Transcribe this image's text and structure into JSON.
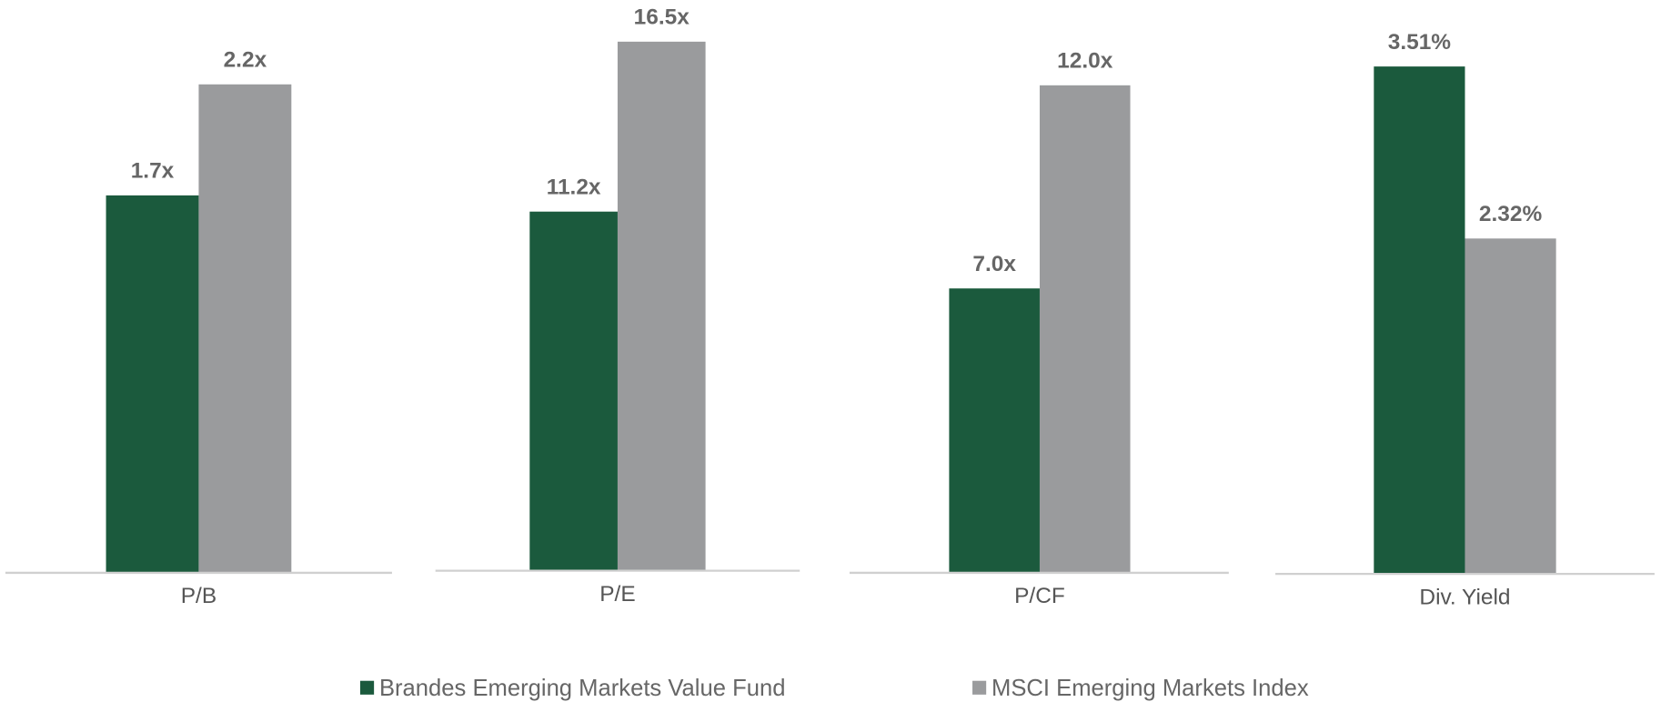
{
  "chart_data": [
    {
      "type": "bar",
      "categories": [
        "P/B"
      ],
      "ylim": [
        0,
        2.58
      ],
      "series": [
        {
          "color": "#1b5a3d",
          "values": [
            1.7
          ],
          "value_labels": [
            "1.7x"
          ]
        },
        {
          "color": "#9a9b9d",
          "values": [
            2.2
          ],
          "value_labels": [
            "2.2x"
          ]
        }
      ]
    },
    {
      "type": "bar",
      "categories": [
        "P/E"
      ],
      "ylim": [
        0,
        17.8
      ],
      "series": [
        {
          "color": "#1b5a3d",
          "values": [
            11.2
          ],
          "value_labels": [
            "11.2x"
          ]
        },
        {
          "color": "#9a9b9d",
          "values": [
            16.5
          ],
          "value_labels": [
            "16.5x"
          ]
        }
      ]
    },
    {
      "type": "bar",
      "categories": [
        "P/CF"
      ],
      "ylim": [
        0,
        14.1
      ],
      "series": [
        {
          "color": "#1b5a3d",
          "values": [
            7.0
          ],
          "value_labels": [
            "7.0x"
          ]
        },
        {
          "color": "#9a9b9d",
          "values": [
            12.0
          ],
          "value_labels": [
            "12.0x"
          ]
        }
      ]
    },
    {
      "type": "bar",
      "categories": [
        "Div. Yield"
      ],
      "ylim": [
        0,
        3.97
      ],
      "series": [
        {
          "color": "#1b5a3d",
          "values": [
            3.51
          ],
          "value_labels": [
            "3.51%"
          ]
        },
        {
          "color": "#9a9b9d",
          "values": [
            2.32
          ],
          "value_labels": [
            "2.32%"
          ]
        }
      ]
    }
  ],
  "legend": [
    {
      "name": "Brandes Emerging Markets Value Fund",
      "color": "#1b5a3d"
    },
    {
      "name": "MSCI Emerging Markets Index",
      "color": "#9a9b9d"
    }
  ]
}
